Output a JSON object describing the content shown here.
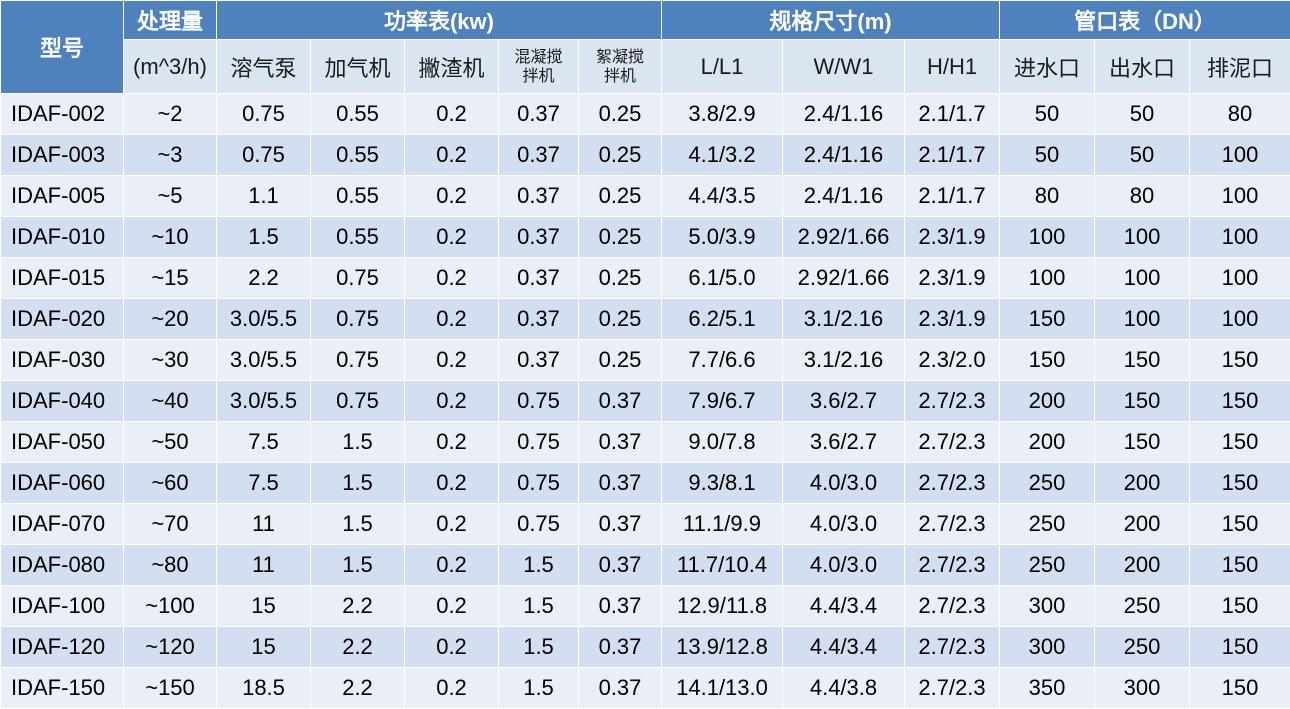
{
  "header": {
    "model": "型号",
    "capacity": "处理量",
    "capacity_unit": "(m^3/h)",
    "power_group": "功率表(kw)",
    "size_group": "规格尺寸(m)",
    "pipe_group": "管口表（DN）",
    "sub_columns": {
      "air_pump": "溶气泵",
      "dosing": "加气机",
      "skimmer": "撇渣机",
      "coag_line1": "混凝搅",
      "coag_line2": "拌机",
      "floc_line1": "絮凝搅",
      "floc_line2": "拌机",
      "length": "L/L1",
      "width": "W/W1",
      "height": "H/H1",
      "inlet": "进水口",
      "outlet": "出水口",
      "sludge": "排泥口"
    }
  },
  "rows": [
    [
      "IDAF-002",
      "~2",
      "0.75",
      "0.55",
      "0.2",
      "0.37",
      "0.25",
      "3.8/2.9",
      "2.4/1.16",
      "2.1/1.7",
      "50",
      "50",
      "80"
    ],
    [
      "IDAF-003",
      "~3",
      "0.75",
      "0.55",
      "0.2",
      "0.37",
      "0.25",
      "4.1/3.2",
      "2.4/1.16",
      "2.1/1.7",
      "50",
      "50",
      "100"
    ],
    [
      "IDAF-005",
      "~5",
      "1.1",
      "0.55",
      "0.2",
      "0.37",
      "0.25",
      "4.4/3.5",
      "2.4/1.16",
      "2.1/1.7",
      "80",
      "80",
      "100"
    ],
    [
      "IDAF-010",
      "~10",
      "1.5",
      "0.55",
      "0.2",
      "0.37",
      "0.25",
      "5.0/3.9",
      "2.92/1.66",
      "2.3/1.9",
      "100",
      "100",
      "100"
    ],
    [
      "IDAF-015",
      "~15",
      "2.2",
      "0.75",
      "0.2",
      "0.37",
      "0.25",
      "6.1/5.0",
      "2.92/1.66",
      "2.3/1.9",
      "100",
      "100",
      "100"
    ],
    [
      "IDAF-020",
      "~20",
      "3.0/5.5",
      "0.75",
      "0.2",
      "0.37",
      "0.25",
      "6.2/5.1",
      "3.1/2.16",
      "2.3/1.9",
      "150",
      "100",
      "100"
    ],
    [
      "IDAF-030",
      "~30",
      "3.0/5.5",
      "0.75",
      "0.2",
      "0.37",
      "0.25",
      "7.7/6.6",
      "3.1/2.16",
      "2.3/2.0",
      "150",
      "150",
      "150"
    ],
    [
      "IDAF-040",
      "~40",
      "3.0/5.5",
      "0.75",
      "0.2",
      "0.75",
      "0.37",
      "7.9/6.7",
      "3.6/2.7",
      "2.7/2.3",
      "200",
      "150",
      "150"
    ],
    [
      "IDAF-050",
      "~50",
      "7.5",
      "1.5",
      "0.2",
      "0.75",
      "0.37",
      "9.0/7.8",
      "3.6/2.7",
      "2.7/2.3",
      "200",
      "150",
      "150"
    ],
    [
      "IDAF-060",
      "~60",
      "7.5",
      "1.5",
      "0.2",
      "0.75",
      "0.37",
      "9.3/8.1",
      "4.0/3.0",
      "2.7/2.3",
      "250",
      "200",
      "150"
    ],
    [
      "IDAF-070",
      "~70",
      "11",
      "1.5",
      "0.2",
      "0.75",
      "0.37",
      "11.1/9.9",
      "4.0/3.0",
      "2.7/2.3",
      "250",
      "200",
      "150"
    ],
    [
      "IDAF-080",
      "~80",
      "11",
      "1.5",
      "0.2",
      "1.5",
      "0.37",
      "11.7/10.4",
      "4.0/3.0",
      "2.7/2.3",
      "250",
      "200",
      "150"
    ],
    [
      "IDAF-100",
      "~100",
      "15",
      "2.2",
      "0.2",
      "1.5",
      "0.37",
      "12.9/11.8",
      "4.4/3.4",
      "2.7/2.3",
      "300",
      "250",
      "150"
    ],
    [
      "IDAF-120",
      "~120",
      "15",
      "2.2",
      "0.2",
      "1.5",
      "0.37",
      "13.9/12.8",
      "4.4/3.4",
      "2.7/2.3",
      "300",
      "250",
      "150"
    ],
    [
      "IDAF-150",
      "~150",
      "18.5",
      "2.2",
      "0.2",
      "1.5",
      "0.37",
      "14.1/13.0",
      "4.4/3.8",
      "2.7/2.3",
      "350",
      "300",
      "150"
    ]
  ],
  "colors": {
    "header_blue": "#4f81bd",
    "subheader": "#dbe5f1",
    "row_light": "#e9eef7",
    "row_dark": "#d3dff0"
  }
}
